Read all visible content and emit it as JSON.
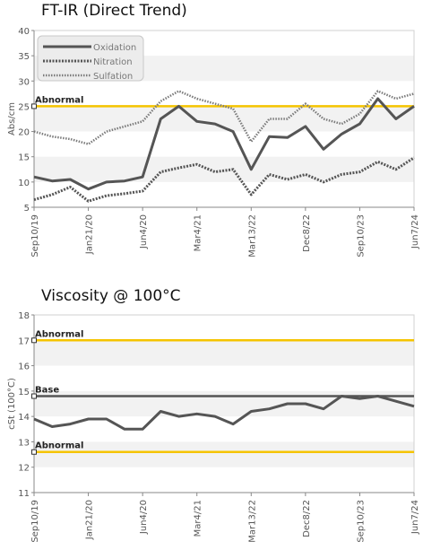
{
  "chart_data": [
    {
      "type": "line",
      "title": "FT-IR (Direct Trend)",
      "ylabel": "Abs/cm",
      "ylim": [
        5,
        40
      ],
      "yticks": [
        5,
        10,
        15,
        20,
        25,
        30,
        35,
        40
      ],
      "xticks": [
        "Sep10/19",
        "Jan21/20",
        "Jun4/20",
        "Mar4/21",
        "Mar13/22",
        "Dec8/22",
        "Sep10/23",
        "Jun7/24"
      ],
      "legend": "top-left",
      "grid": false,
      "reference_lines": [
        {
          "label": "Abnormal",
          "value": 25,
          "color": "#f5c400"
        }
      ],
      "series": [
        {
          "name": "Oxidation",
          "style": "solid",
          "values": [
            11,
            10.2,
            10.5,
            8.6,
            10,
            10.2,
            11,
            22.5,
            25,
            22,
            21.5,
            20,
            12.5,
            19,
            18.8,
            21,
            16.5,
            19.5,
            21.5,
            26.5,
            22.5,
            25
          ]
        },
        {
          "name": "Nitration",
          "style": "dashed",
          "values": [
            6.5,
            7.5,
            9,
            6.2,
            7.3,
            7.7,
            8.2,
            12,
            12.8,
            13.5,
            12,
            12.5,
            7.5,
            11.5,
            10.5,
            11.5,
            10,
            11.5,
            12,
            14,
            12.5,
            14.8
          ]
        },
        {
          "name": "Sulfation",
          "style": "dotted",
          "values": [
            20,
            19,
            18.5,
            17.5,
            20,
            21,
            22,
            26,
            28,
            26.5,
            25.5,
            24.5,
            18,
            22.5,
            22.5,
            25.5,
            22.5,
            21.5,
            23.5,
            28,
            26.5,
            27.5
          ]
        }
      ]
    },
    {
      "type": "line",
      "title": "Viscosity @ 100°C",
      "ylabel": "cSt (100°C)",
      "ylim": [
        11,
        18
      ],
      "yticks": [
        11,
        12,
        13,
        14,
        15,
        16,
        17,
        18
      ],
      "xticks": [
        "Sep10/19",
        "Jan21/20",
        "Jun4/20",
        "Mar4/21",
        "Mar13/22",
        "Dec8/22",
        "Sep10/23",
        "Jun7/24"
      ],
      "grid": false,
      "reference_lines": [
        {
          "label": "Abnormal",
          "value": 17,
          "color": "#f5c400"
        },
        {
          "label": "Base",
          "value": 14.8,
          "color": "#555555"
        },
        {
          "label": "Abnormal",
          "value": 12.6,
          "color": "#f5c400"
        }
      ],
      "series": [
        {
          "values": [
            13.9,
            13.6,
            13.7,
            13.9,
            13.9,
            13.5,
            13.5,
            14.2,
            14,
            14.1,
            14,
            13.7,
            14.2,
            14.3,
            14.5,
            14.5,
            14.3,
            14.8,
            14.7,
            14.8,
            14.6,
            14.4
          ]
        }
      ]
    }
  ]
}
